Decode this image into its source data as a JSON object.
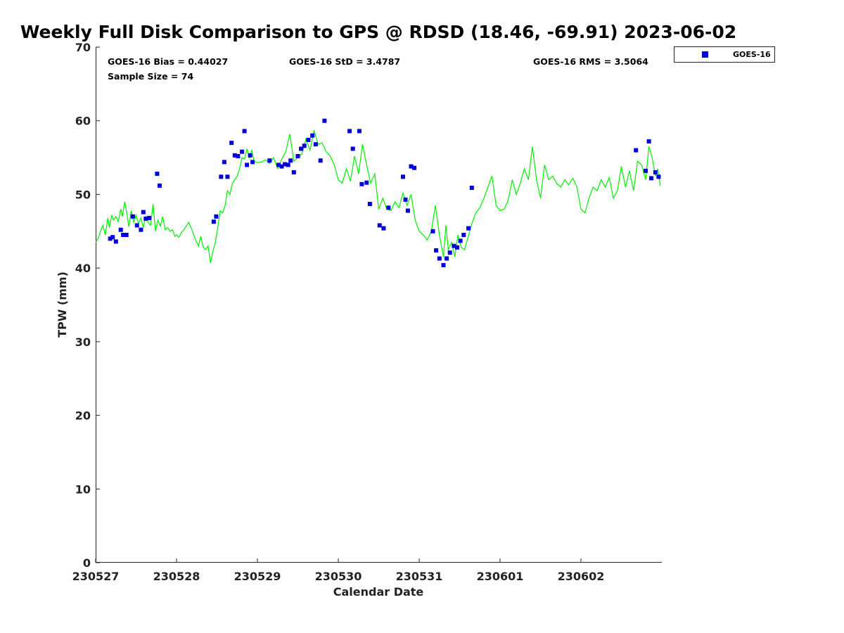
{
  "chart_data": {
    "type": "scatter",
    "title": "Weekly Full Disk Comparison to GPS @ RDSD (18.46, -69.91) 2023-06-02",
    "xlabel": "Calendar Date",
    "ylabel": "TPW (mm)",
    "xlim": [
      0,
      7
    ],
    "ylim": [
      0,
      70
    ],
    "yticks": [
      0,
      10,
      20,
      30,
      40,
      50,
      60,
      70
    ],
    "xticks": [
      {
        "value": 0,
        "label": "230527"
      },
      {
        "value": 1,
        "label": "230528"
      },
      {
        "value": 2,
        "label": "230529"
      },
      {
        "value": 3,
        "label": "230530"
      },
      {
        "value": 4,
        "label": "230531"
      },
      {
        "value": 5,
        "label": "230601"
      },
      {
        "value": 6,
        "label": "230602"
      }
    ],
    "stats": {
      "bias": "GOES-16 Bias = 0.44027",
      "std": "GOES-16 StD = 3.4787",
      "rms": "GOES-16 RMS = 3.5064",
      "sample": "Sample Size = 74"
    },
    "legend": {
      "position": "top-right",
      "label": "GOES-16"
    },
    "colors": {
      "scatter": "#0000dd",
      "line": "#00ee00"
    },
    "series": [
      {
        "name": "GOES-16",
        "kind": "scatter",
        "x": [
          0.18,
          0.21,
          0.25,
          0.31,
          0.34,
          0.38,
          0.46,
          0.51,
          0.56,
          0.59,
          0.62,
          0.66,
          0.76,
          0.79,
          1.46,
          1.49,
          1.55,
          1.59,
          1.63,
          1.68,
          1.72,
          1.76,
          1.81,
          1.84,
          1.87,
          1.91,
          1.94,
          2.15,
          2.26,
          2.3,
          2.34,
          2.38,
          2.41,
          2.45,
          2.5,
          2.54,
          2.58,
          2.63,
          2.68,
          2.72,
          2.78,
          2.83,
          3.14,
          3.18,
          3.26,
          3.29,
          3.35,
          3.39,
          3.51,
          3.56,
          3.62,
          3.8,
          3.83,
          3.86,
          3.9,
          3.94,
          4.17,
          4.21,
          4.25,
          4.3,
          4.34,
          4.38,
          4.43,
          4.47,
          4.51,
          4.55,
          4.61,
          4.65,
          6.68,
          6.8,
          6.84,
          6.87,
          6.92,
          6.96
        ],
        "y": [
          44.0,
          44.2,
          43.6,
          45.2,
          44.5,
          44.5,
          47.0,
          45.8,
          45.2,
          47.6,
          46.7,
          46.8,
          52.8,
          51.2,
          46.3,
          47.0,
          52.4,
          54.4,
          52.4,
          57.0,
          55.3,
          55.2,
          55.8,
          58.6,
          54.0,
          55.3,
          54.4,
          54.6,
          54.0,
          53.8,
          54.1,
          54.0,
          54.6,
          53.0,
          55.2,
          56.2,
          56.6,
          57.4,
          58.0,
          56.8,
          54.6,
          60.0,
          58.6,
          56.2,
          58.6,
          51.4,
          51.6,
          48.7,
          45.8,
          45.4,
          48.2,
          52.4,
          49.3,
          47.8,
          53.8,
          53.6,
          45.0,
          42.4,
          41.3,
          40.4,
          41.3,
          42.1,
          43.0,
          42.8,
          43.7,
          44.5,
          45.4,
          50.9,
          56.0,
          53.2,
          57.2,
          52.2,
          53.0,
          52.4
        ]
      },
      {
        "name": "GPS",
        "kind": "line",
        "x": [
          0.0,
          0.03,
          0.06,
          0.09,
          0.12,
          0.15,
          0.17,
          0.2,
          0.22,
          0.25,
          0.28,
          0.31,
          0.33,
          0.36,
          0.38,
          0.41,
          0.44,
          0.47,
          0.5,
          0.53,
          0.56,
          0.59,
          0.62,
          0.65,
          0.68,
          0.71,
          0.74,
          0.77,
          0.8,
          0.83,
          0.86,
          0.89,
          0.92,
          0.95,
          0.98,
          1.0,
          1.03,
          1.06,
          1.09,
          1.12,
          1.15,
          1.18,
          1.21,
          1.24,
          1.27,
          1.3,
          1.33,
          1.36,
          1.39,
          1.42,
          1.45,
          1.48,
          1.51,
          1.54,
          1.57,
          1.6,
          1.63,
          1.66,
          1.69,
          1.72,
          1.75,
          1.78,
          1.81,
          1.84,
          1.87,
          1.9,
          1.93,
          1.96,
          2.0,
          2.05,
          2.1,
          2.15,
          2.2,
          2.25,
          2.3,
          2.35,
          2.4,
          2.45,
          2.5,
          2.55,
          2.6,
          2.65,
          2.7,
          2.75,
          2.8,
          2.85,
          2.9,
          2.95,
          3.0,
          3.05,
          3.1,
          3.15,
          3.2,
          3.25,
          3.3,
          3.35,
          3.4,
          3.45,
          3.5,
          3.55,
          3.6,
          3.65,
          3.7,
          3.75,
          3.8,
          3.85,
          3.9,
          3.95,
          4.0,
          4.05,
          4.1,
          4.15,
          4.2,
          4.25,
          4.3,
          4.33,
          4.36,
          4.4,
          4.44,
          4.48,
          4.52,
          4.56,
          4.6,
          4.65,
          4.7,
          4.75,
          4.8,
          4.85,
          4.9,
          4.95,
          5.0,
          5.05,
          5.1,
          5.15,
          5.2,
          5.25,
          5.3,
          5.35,
          5.4,
          5.45,
          5.5,
          5.55,
          5.6,
          5.65,
          5.7,
          5.75,
          5.8,
          5.85,
          5.9,
          5.95,
          6.0,
          6.05,
          6.1,
          6.15,
          6.2,
          6.25,
          6.3,
          6.35,
          6.4,
          6.45,
          6.5,
          6.55,
          6.6,
          6.65,
          6.7,
          6.75,
          6.8,
          6.84,
          6.88,
          6.92,
          6.95,
          6.98
        ],
        "y": [
          43.5,
          44.0,
          45.0,
          45.8,
          44.5,
          46.8,
          45.5,
          47.2,
          46.5,
          47.0,
          46.3,
          48.0,
          47.0,
          49.0,
          47.8,
          45.6,
          47.8,
          46.2,
          47.2,
          46.0,
          46.8,
          45.5,
          47.0,
          46.2,
          45.8,
          48.7,
          45.0,
          46.5,
          45.7,
          47.0,
          45.2,
          45.5,
          45.0,
          45.2,
          44.3,
          44.5,
          44.2,
          44.8,
          45.2,
          45.7,
          46.2,
          45.5,
          44.6,
          43.7,
          43.0,
          44.3,
          42.8,
          42.5,
          43.0,
          40.7,
          42.3,
          43.5,
          45.5,
          47.8,
          47.5,
          48.5,
          50.5,
          50.0,
          51.5,
          52.0,
          52.5,
          53.5,
          55.0,
          54.8,
          56.2,
          55.0,
          56.0,
          54.5,
          54.3,
          54.4,
          54.7,
          54.2,
          55.0,
          53.5,
          54.8,
          55.8,
          58.2,
          54.5,
          55.0,
          55.5,
          57.5,
          56.0,
          58.7,
          56.8,
          57.0,
          55.8,
          55.2,
          54.0,
          52.0,
          51.5,
          53.5,
          51.8,
          55.2,
          52.8,
          56.8,
          54.0,
          51.5,
          52.8,
          48.0,
          49.5,
          48.0,
          47.8,
          49.0,
          48.2,
          50.2,
          48.5,
          50.0,
          46.5,
          45.0,
          44.5,
          43.8,
          45.0,
          48.5,
          44.5,
          41.5,
          45.8,
          42.5,
          43.5,
          41.5,
          44.5,
          42.8,
          42.5,
          44.0,
          46.0,
          47.5,
          48.2,
          49.5,
          51.0,
          52.5,
          48.5,
          47.8,
          48.0,
          49.2,
          52.0,
          50.0,
          51.5,
          53.5,
          52.0,
          56.5,
          52.0,
          49.5,
          54.0,
          52.0,
          52.5,
          51.5,
          51.0,
          52.0,
          51.3,
          52.2,
          51.0,
          48.0,
          47.5,
          49.5,
          51.0,
          50.5,
          52.0,
          51.0,
          52.3,
          49.5,
          50.5,
          53.8,
          51.0,
          53.2,
          50.5,
          54.5,
          54.0,
          52.0,
          56.5,
          55.0,
          52.5,
          53.5,
          51.2
        ]
      }
    ]
  }
}
